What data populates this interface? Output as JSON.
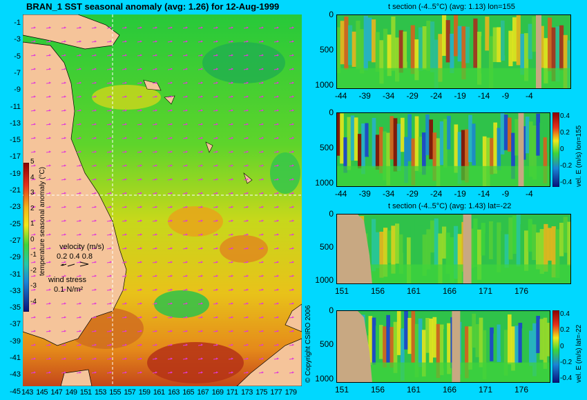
{
  "map": {
    "title": "BRAN_1  SST seasonal anomaly (avg: 1.26) for 12-Aug-1999",
    "lat_labels": [
      "-1",
      "-3",
      "-5",
      "-7",
      "-9",
      "-11",
      "-13",
      "-15",
      "-17",
      "-19",
      "-21",
      "-23",
      "-25",
      "-27",
      "-29",
      "-31",
      "-33",
      "-35",
      "-37",
      "-39",
      "-41",
      "-43",
      "-45"
    ],
    "lon_labels": [
      "143",
      "145",
      "147",
      "149",
      "151",
      "153",
      "155",
      "157",
      "159",
      "161",
      "163",
      "165",
      "167",
      "169",
      "171",
      "173",
      "175",
      "177",
      "179"
    ],
    "colorbar_ticks": [
      "5",
      "4",
      "3",
      "2",
      "1",
      "0",
      "-1",
      "-2",
      "-3",
      "-4"
    ],
    "colorbar_label": "temperature seasonal anomaly (°C)",
    "velocity_label": "velocity (m/s)",
    "velocity_scale": "0.2 0.4 0.8",
    "wind_label": "wind stress",
    "wind_scale": "0.1 N/m²",
    "crosshair_lon": 155,
    "crosshair_lat": -22
  },
  "sections": [
    {
      "title": "t section (-4..5°C) (avg: 1.13) lon=155",
      "x_ticks": [
        "-44",
        "-39",
        "-34",
        "-29",
        "-24",
        "-19",
        "-14",
        "-9",
        "-4"
      ],
      "y_ticks": [
        "0",
        "500",
        "1000"
      ],
      "has_cbar": false
    },
    {
      "title": "",
      "x_ticks": [
        "-44",
        "-39",
        "-34",
        "-29",
        "-24",
        "-19",
        "-14",
        "-9",
        "-4"
      ],
      "y_ticks": [
        "0",
        "500",
        "1000"
      ],
      "has_cbar": true,
      "cbar_ticks": [
        "0.4",
        "0.2",
        "0",
        "-0.2",
        "-0.4"
      ],
      "cbar_label": "vel. E (m/s) lon=155"
    },
    {
      "title": "t section (-4..5°C) (avg: 1.43) lat=-22",
      "x_ticks": [
        "151",
        "156",
        "161",
        "166",
        "171",
        "176"
      ],
      "y_ticks": [
        "0",
        "500",
        "1000"
      ],
      "has_cbar": false
    },
    {
      "title": "",
      "x_ticks": [
        "151",
        "156",
        "161",
        "166",
        "171",
        "176"
      ],
      "y_ticks": [
        "0",
        "500",
        "1000"
      ],
      "has_cbar": true,
      "cbar_ticks": [
        "0.4",
        "0.2",
        "0",
        "-0.2",
        "-0.4"
      ],
      "cbar_label": "vel. E (m/s) lat=-22"
    }
  ],
  "copyright": "© Copyright CSIRO 2006",
  "colors": {
    "background": "#00d8ff",
    "land": "#f5c49a",
    "bathy_land": "#c8a882"
  }
}
